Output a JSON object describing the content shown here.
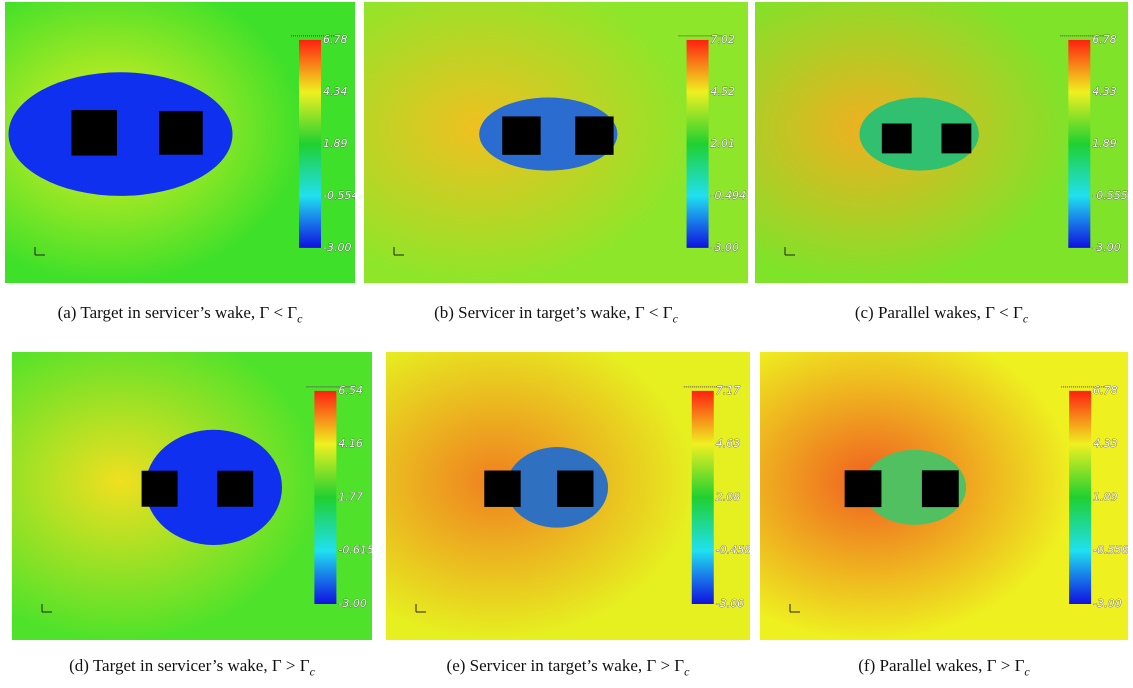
{
  "panels": [
    {
      "label": "(a)",
      "caption": "Target in servicer’s wake, Γ < Γ",
      "caption_sub": "c",
      "colorbar": [
        "6.78",
        "4.34",
        "1.89",
        "-0.554",
        "-3.00"
      ]
    },
    {
      "label": "(b)",
      "caption": "Servicer in target’s wake, Γ < Γ",
      "caption_sub": "c",
      "colorbar": [
        "7.02",
        "4.52",
        "2.01",
        "-0.494",
        "-3.00"
      ]
    },
    {
      "label": "(c)",
      "caption": "Parallel wakes, Γ < Γ",
      "caption_sub": "c",
      "colorbar": [
        "6.78",
        "4.33",
        "1.89",
        "-0.555",
        "-3.00"
      ]
    },
    {
      "label": "(d)",
      "caption": "Target in servicer’s wake, Γ > Γ",
      "caption_sub": "c",
      "colorbar": [
        "6.54",
        "4.16",
        "1.77",
        "-0.615",
        "-3.00"
      ]
    },
    {
      "label": "(e)",
      "caption": "Servicer in target’s wake, Γ > Γ",
      "caption_sub": "c",
      "colorbar": [
        "7.17",
        "4.63",
        "2.08",
        "-0.458",
        "-3.00"
      ]
    },
    {
      "label": "(f)",
      "caption": "Parallel wakes, Γ > Γ",
      "caption_sub": "c",
      "colorbar": [
        "6.78",
        "4.33",
        "1.89",
        "-0.556",
        "-3.00"
      ]
    }
  ]
}
